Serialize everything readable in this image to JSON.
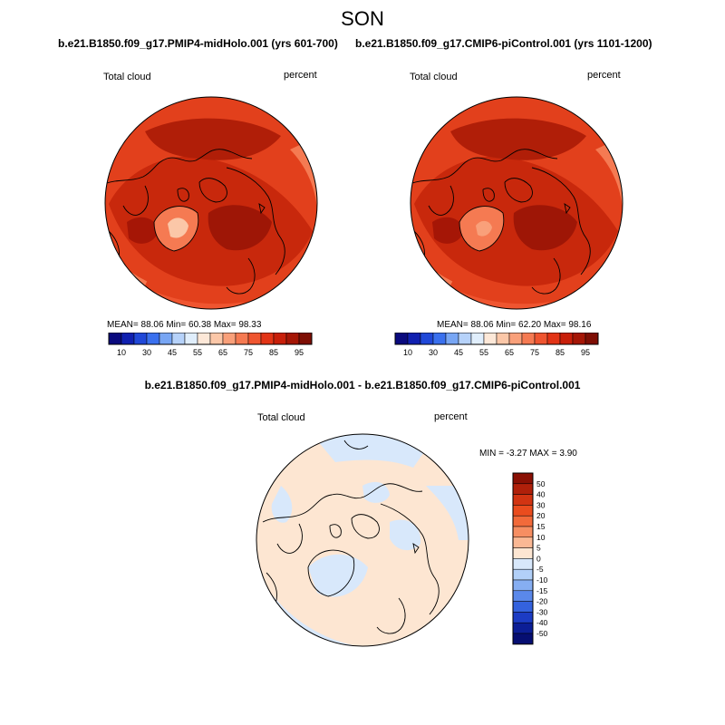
{
  "figure": {
    "season": "SON"
  },
  "panels": [
    {
      "title": "b.e21.B1850.f09_g17.PMIP4-midHolo.001 (yrs 601-700)",
      "variable": "Total cloud",
      "units": "percent",
      "stats": {
        "mean": "88.06",
        "min": "60.38",
        "max": "98.33"
      },
      "stats_text": "MEAN=  88.06   Min=  60.38   Max=  98.33"
    },
    {
      "title": "b.e21.B1850.f09_g17.CMIP6-piControl.001 (yrs 1101-1200)",
      "variable": "Total cloud",
      "units": "percent",
      "stats": {
        "mean": "88.06",
        "min": "62.20",
        "max": "98.16"
      },
      "stats_text": "MEAN=  88.06   Min=  62.20   Max=  98.16"
    }
  ],
  "diff_panel": {
    "title": "b.e21.B1850.f09_g17.PMIP4-midHolo.001 - b.e21.B1850.f09_g17.CMIP6-piControl.001",
    "variable": "Total cloud",
    "units": "percent",
    "stats": {
      "min": "-3.27",
      "max": "3.90"
    },
    "stats_text": "MIN =  -3.27 MAX =   3.90"
  },
  "colorbar_abs": {
    "tick_labels": [
      "10",
      "30",
      "45",
      "55",
      "65",
      "75",
      "85",
      "95"
    ],
    "colors": [
      "#0a0a7e",
      "#1020b0",
      "#2048d8",
      "#3a70ee",
      "#78a6f4",
      "#b6d2fa",
      "#e0eefc",
      "#fde8d8",
      "#fbc7a8",
      "#f9a07a",
      "#f57a52",
      "#ef5530",
      "#e23416",
      "#c81f0a",
      "#a51606",
      "#7e0e04"
    ]
  },
  "colorbar_diff": {
    "tick_labels": [
      "50",
      "40",
      "30",
      "20",
      "15",
      "10",
      "5",
      "0",
      "-5",
      "-10",
      "-15",
      "-20",
      "-30",
      "-40",
      "-50"
    ],
    "colors": [
      "#8a1004",
      "#b0200a",
      "#d23412",
      "#ea4c1e",
      "#f26a3a",
      "#f68e62",
      "#fab894",
      "#fde6d2",
      "#d8e8fb",
      "#b2d0f8",
      "#86aef2",
      "#5a88ea",
      "#3462de",
      "#1c3cc4",
      "#0c1e96",
      "#060e72"
    ]
  }
}
